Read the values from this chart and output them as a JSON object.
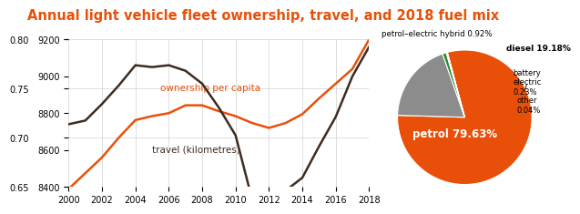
{
  "title": "Annual light vehicle fleet ownership, travel, and 2018 fuel mix",
  "title_color": "#e8500a",
  "years": [
    2000,
    2001,
    2002,
    2003,
    2004,
    2005,
    2006,
    2007,
    2008,
    2009,
    2010,
    2011,
    2012,
    2013,
    2014,
    2015,
    2016,
    2017,
    2018
  ],
  "ownership": [
    0.648,
    0.664,
    0.68,
    0.7,
    0.718,
    0.722,
    0.725,
    0.733,
    0.733,
    0.727,
    0.722,
    0.715,
    0.71,
    0.715,
    0.724,
    0.74,
    0.755,
    0.77,
    0.8
  ],
  "travel": [
    8740,
    8760,
    8850,
    8950,
    9060,
    9050,
    9060,
    9030,
    8960,
    8830,
    8680,
    8330,
    8310,
    8380,
    8450,
    8620,
    8780,
    9000,
    9160
  ],
  "ownership_color": "#e8500a",
  "travel_color": "#3d2b1f",
  "ownership_label": "ownership per capita",
  "travel_label": "travel (kilometres)",
  "ylim_ownership": [
    0.65,
    0.8
  ],
  "ylim_travel": [
    8400,
    9200
  ],
  "yticks_ownership": [
    0.65,
    0.7,
    0.75,
    0.8
  ],
  "yticks_travel": [
    8400,
    8600,
    8800,
    9000,
    9200
  ],
  "xticks": [
    2000,
    2002,
    2004,
    2006,
    2008,
    2010,
    2012,
    2014,
    2016,
    2018
  ],
  "pie_values": [
    79.63,
    19.18,
    0.92,
    0.23,
    0.04
  ],
  "pie_colors": [
    "#e8500a",
    "#8c8c8c",
    "#2d8a2d",
    "#b0b0b0",
    "#969696"
  ],
  "background_color": "#ffffff",
  "grid_color": "#d0d0d0"
}
